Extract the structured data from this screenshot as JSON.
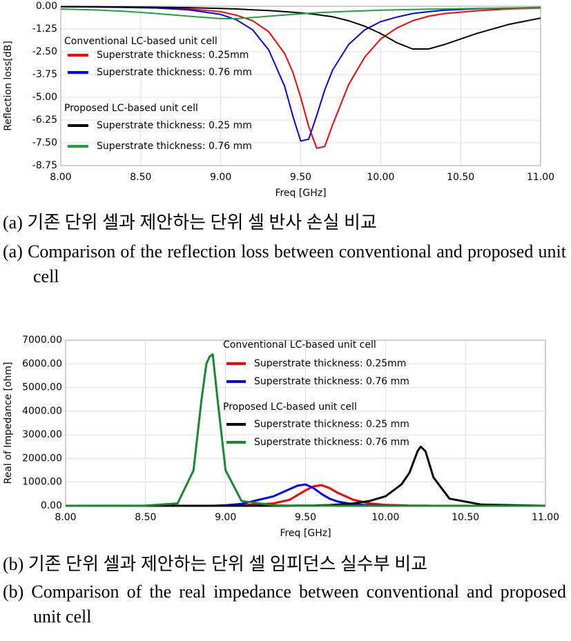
{
  "chart_data": [
    {
      "type": "line",
      "ylabel": "Reflection loss[dB]",
      "xlabel": "Freq [GHz]",
      "legend_titles": [
        "Conventional LC-based unit cell",
        "Proposed LC-based unit cell"
      ],
      "captions": [
        "(a) 기존 단위 셀과 제안하는 단위 셀 반사 손실 비교",
        "(a) Comparison of the reflection loss between conventional and proposed unit cell"
      ],
      "grid": true,
      "xlim": [
        8,
        11
      ],
      "ylim": [
        -8.75,
        0
      ],
      "xticks": [
        {
          "value": 8,
          "label": "8.00"
        },
        {
          "value": 8.5,
          "label": "8.50"
        },
        {
          "value": 9,
          "label": "9.00"
        },
        {
          "value": 9.5,
          "label": "9.50"
        },
        {
          "value": 10,
          "label": "10.00"
        },
        {
          "value": 10.5,
          "label": "10.50"
        },
        {
          "value": 11,
          "label": "11.00"
        }
      ],
      "yticks": [
        {
          "value": 0,
          "label": "0.00"
        },
        {
          "value": -1.25,
          "label": "-1.25"
        },
        {
          "value": -2.5,
          "label": "-2.50"
        },
        {
          "value": -3.75,
          "label": "-3.75"
        },
        {
          "value": -5,
          "label": "-5.00"
        },
        {
          "value": -6.25,
          "label": "-6.25"
        },
        {
          "value": -7.5,
          "label": "-7.50"
        },
        {
          "value": -8.75,
          "label": "-8.75"
        }
      ],
      "x": [
        8.0,
        8.2,
        8.4,
        8.6,
        8.8,
        9.0,
        9.1,
        9.2,
        9.3,
        9.4,
        9.45,
        9.5,
        9.55,
        9.6,
        9.65,
        9.7,
        9.8,
        9.9,
        10.0,
        10.1,
        10.2,
        10.3,
        10.4,
        10.6,
        10.8,
        11.0
      ],
      "series": [
        {
          "name": "Superstrate thickness: 0.25mm",
          "color": "#ff0000",
          "values": [
            -0.02,
            -0.03,
            -0.05,
            -0.08,
            -0.15,
            -0.3,
            -0.5,
            -0.8,
            -1.4,
            -2.6,
            -3.6,
            -5.0,
            -6.6,
            -7.8,
            -7.7,
            -6.5,
            -4.3,
            -2.8,
            -1.8,
            -1.2,
            -0.8,
            -0.55,
            -0.4,
            -0.25,
            -0.15,
            -0.1
          ]
        },
        {
          "name": "Superstrate thickness: 0.76 mm",
          "color": "#0000ff",
          "values": [
            -0.03,
            -0.04,
            -0.07,
            -0.1,
            -0.2,
            -0.45,
            -0.75,
            -1.3,
            -2.4,
            -4.4,
            -6.0,
            -7.4,
            -7.3,
            -6.0,
            -4.6,
            -3.5,
            -2.1,
            -1.3,
            -0.85,
            -0.6,
            -0.4,
            -0.3,
            -0.22,
            -0.14,
            -0.1,
            -0.07
          ]
        },
        {
          "name": "Superstrate thickness: 0.25 mm",
          "color": "#000000",
          "values": [
            -0.02,
            -0.03,
            -0.04,
            -0.06,
            -0.08,
            -0.12,
            -0.15,
            -0.2,
            -0.24,
            -0.3,
            -0.33,
            -0.37,
            -0.41,
            -0.46,
            -0.52,
            -0.58,
            -0.8,
            -1.1,
            -1.5,
            -2.0,
            -2.35,
            -2.35,
            -2.1,
            -1.5,
            -1.0,
            -0.65
          ]
        },
        {
          "name": "Superstrate thickness: 0.76 mm",
          "color": "#1aa637",
          "values": [
            -0.15,
            -0.2,
            -0.28,
            -0.4,
            -0.55,
            -0.68,
            -0.68,
            -0.62,
            -0.55,
            -0.48,
            -0.45,
            -0.42,
            -0.39,
            -0.36,
            -0.34,
            -0.32,
            -0.28,
            -0.25,
            -0.22,
            -0.2,
            -0.18,
            -0.16,
            -0.15,
            -0.12,
            -0.1,
            -0.08
          ]
        }
      ]
    },
    {
      "type": "line",
      "ylabel": "Real of Impedance [ohm]",
      "xlabel": "Freq [GHz]",
      "legend_titles": [
        "Conventional LC-based unit cell",
        "Proposed LC-based unit cell"
      ],
      "captions": [
        "(b) 기존 단위 셀과 제안하는 단위 셀 임피던스 실수부 비교",
        "(b) Comparison of the real impedance between conventional and proposed unit cell"
      ],
      "grid": true,
      "xlim": [
        8,
        11
      ],
      "ylim": [
        0,
        7000
      ],
      "xticks": [
        {
          "value": 8,
          "label": "8.00"
        },
        {
          "value": 8.5,
          "label": "8.50"
        },
        {
          "value": 9,
          "label": "9.00"
        },
        {
          "value": 9.5,
          "label": "9.50"
        },
        {
          "value": 10,
          "label": "10.00"
        },
        {
          "value": 10.5,
          "label": "10.50"
        },
        {
          "value": 11,
          "label": "11.00"
        }
      ],
      "yticks": [
        {
          "value": 0,
          "label": "0.00"
        },
        {
          "value": 1000,
          "label": "1000.00"
        },
        {
          "value": 2000,
          "label": "2000.00"
        },
        {
          "value": 3000,
          "label": "3000.00"
        },
        {
          "value": 4000,
          "label": "4000.00"
        },
        {
          "value": 5000,
          "label": "5000.00"
        },
        {
          "value": 6000,
          "label": "6000.00"
        },
        {
          "value": 7000,
          "label": "7000.00"
        }
      ],
      "x": [
        8.0,
        8.5,
        8.7,
        8.8,
        8.85,
        8.88,
        8.9,
        8.92,
        8.95,
        9.0,
        9.1,
        9.3,
        9.4,
        9.45,
        9.5,
        9.55,
        9.6,
        9.65,
        9.7,
        9.8,
        9.9,
        10.0,
        10.1,
        10.15,
        10.2,
        10.22,
        10.25,
        10.3,
        10.4,
        10.6,
        11.0
      ],
      "series": [
        {
          "name": "Superstrate thickness: 0.25mm",
          "color": "#ff0000",
          "values": [
            0,
            0,
            0,
            0,
            0,
            0,
            0,
            0,
            0,
            5,
            20,
            100,
            250,
            450,
            650,
            820,
            870,
            750,
            550,
            250,
            100,
            40,
            20,
            10,
            5,
            5,
            5,
            0,
            0,
            0,
            0
          ]
        },
        {
          "name": "Superstrate thickness: 0.76 mm",
          "color": "#0000ff",
          "values": [
            0,
            0,
            0,
            0,
            0,
            0,
            0,
            0,
            5,
            20,
            80,
            400,
            700,
            850,
            900,
            750,
            500,
            300,
            180,
            60,
            20,
            10,
            5,
            0,
            0,
            0,
            0,
            0,
            0,
            0,
            0
          ]
        },
        {
          "name": "Superstrate thickness: 0.25 mm",
          "color": "#000000",
          "values": [
            0,
            0,
            0,
            0,
            0,
            0,
            0,
            0,
            0,
            0,
            0,
            0,
            0,
            5,
            5,
            10,
            20,
            30,
            50,
            100,
            200,
            400,
            900,
            1400,
            2300,
            2500,
            2300,
            1200,
            300,
            50,
            0
          ]
        },
        {
          "name": "Superstrate thickness: 0.76 mm",
          "color": "#138a2c",
          "values": [
            0,
            10,
            100,
            1500,
            4500,
            6000,
            6300,
            6400,
            4500,
            1500,
            200,
            20,
            10,
            5,
            5,
            3,
            2,
            2,
            1,
            1,
            0,
            0,
            0,
            0,
            0,
            0,
            0,
            0,
            0,
            0,
            0
          ]
        }
      ]
    }
  ]
}
